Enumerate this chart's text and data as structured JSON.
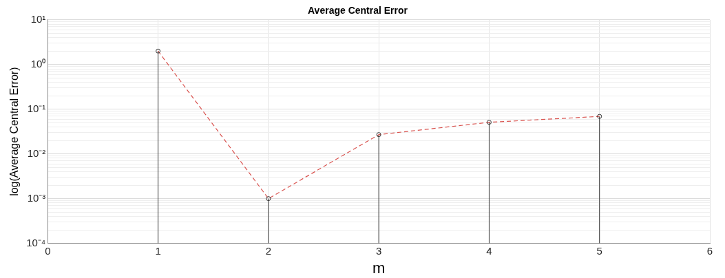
{
  "chart_data": {
    "type": "lollipop",
    "title": "Average Central Error",
    "xlabel": "m",
    "ylabel": "log(Average Central Error)",
    "x": [
      1,
      2,
      3,
      4,
      5
    ],
    "series": [
      {
        "color": "#333333",
        "values": [
          2.0,
          0.001,
          0.027,
          0.051,
          0.069
        ],
        "marker": "circle"
      },
      {
        "type": "line",
        "color": "#d9534f",
        "values": [
          2.0,
          0.001,
          0.027,
          0.051,
          0.069
        ],
        "line_style": "dashed",
        "marker": "none"
      }
    ],
    "log": "y",
    "grid": true,
    "legend": false,
    "xlim": [
      0,
      6
    ],
    "xticks": [
      0,
      1,
      2,
      3,
      4,
      5,
      6
    ],
    "ylim": [
      0.0001,
      10
    ],
    "yticks": [
      {
        "value": 0.0001,
        "label": "10⁻⁴"
      },
      {
        "value": 0.0002,
        "label": null
      },
      {
        "value": 0.0003,
        "label": null
      },
      {
        "value": 0.0004,
        "label": null
      },
      {
        "value": 0.0005,
        "label": null
      },
      {
        "value": 0.0006,
        "label": null
      },
      {
        "value": 0.0007,
        "label": null
      },
      {
        "value": 0.0008,
        "label": null
      },
      {
        "value": 0.0009,
        "label": null
      },
      {
        "value": 0.001,
        "label": "10⁻³"
      },
      {
        "value": 0.002,
        "label": null
      },
      {
        "value": 0.003,
        "label": null
      },
      {
        "value": 0.004,
        "label": null
      },
      {
        "value": 0.005,
        "label": null
      },
      {
        "value": 0.006,
        "label": null
      },
      {
        "value": 0.007,
        "label": null
      },
      {
        "value": 0.008,
        "label": null
      },
      {
        "value": 0.009,
        "label": null
      },
      {
        "value": 0.01,
        "label": "10⁻²"
      },
      {
        "value": 0.02,
        "label": null
      },
      {
        "value": 0.03,
        "label": null
      },
      {
        "value": 0.04,
        "label": null
      },
      {
        "value": 0.05,
        "label": null
      },
      {
        "value": 0.06,
        "label": null
      },
      {
        "value": 0.07,
        "label": null
      },
      {
        "value": 0.08,
        "label": null
      },
      {
        "value": 0.09,
        "label": null
      },
      {
        "value": 0.1,
        "label": "10⁻¹"
      },
      {
        "value": 0.2,
        "label": null
      },
      {
        "value": 0.3,
        "label": null
      },
      {
        "value": 0.4,
        "label": null
      },
      {
        "value": 0.5,
        "label": null
      },
      {
        "value": 0.6,
        "label": null
      },
      {
        "value": 0.7,
        "label": null
      },
      {
        "value": 0.8,
        "label": null
      },
      {
        "value": 0.9,
        "label": null
      },
      {
        "value": 1,
        "label": "10⁰"
      },
      {
        "value": 2,
        "label": null
      },
      {
        "value": 3,
        "label": null
      },
      {
        "value": 4,
        "label": null
      },
      {
        "value": 5,
        "label": null
      },
      {
        "value": 6,
        "label": null
      },
      {
        "value": 7,
        "label": null
      },
      {
        "value": 8,
        "label": null
      },
      {
        "value": 9,
        "label": null
      },
      {
        "value": 10,
        "label": "10¹"
      }
    ]
  }
}
